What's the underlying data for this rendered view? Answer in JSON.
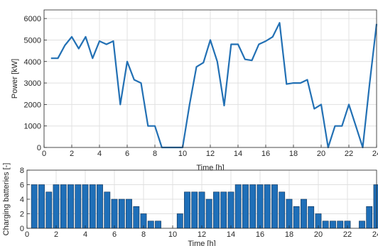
{
  "colors": {
    "series": "#2270b4",
    "bar_fill": "#1f6fb8",
    "bar_edge": "#0c2f52",
    "grid": "#e0e0e0",
    "axis": "#262626"
  },
  "chart_data": [
    {
      "type": "line",
      "xlabel": "Time [h]",
      "ylabel": "Power [kW]",
      "xlim": [
        0,
        24
      ],
      "ylim": [
        0,
        6400
      ],
      "xticks": [
        "0",
        "2",
        "4",
        "6",
        "8",
        "10",
        "12",
        "14",
        "16",
        "18",
        "20",
        "22",
        "24"
      ],
      "yticks": [
        "0",
        "1000",
        "2000",
        "3000",
        "4000",
        "5000",
        "6000"
      ],
      "grid": true,
      "x": [
        0.5,
        1.0,
        1.5,
        2.0,
        2.5,
        3.0,
        3.5,
        4.0,
        4.5,
        5.0,
        5.5,
        6.0,
        6.5,
        7.0,
        7.5,
        8.0,
        8.5,
        9.0,
        9.5,
        10.0,
        10.5,
        11.0,
        11.5,
        12.0,
        12.5,
        13.0,
        13.5,
        14.0,
        14.5,
        15.0,
        15.5,
        16.0,
        16.5,
        17.0,
        17.5,
        18.0,
        18.5,
        19.0,
        19.5,
        20.0,
        20.5,
        21.0,
        21.5,
        22.0,
        22.5,
        23.0,
        23.5,
        24.0
      ],
      "values": [
        4150,
        4150,
        4750,
        5150,
        4600,
        5150,
        4150,
        4950,
        4800,
        4950,
        2000,
        4000,
        3150,
        3000,
        1000,
        1000,
        0,
        0,
        0,
        0,
        2000,
        3750,
        3950,
        5000,
        4000,
        1950,
        4800,
        4800,
        4100,
        4050,
        4800,
        4950,
        5150,
        5800,
        2950,
        3000,
        3000,
        3150,
        1800,
        2000,
        0,
        1000,
        1000,
        2000,
        1000,
        0,
        3000,
        5750
      ]
    },
    {
      "type": "bar",
      "xlabel": "Time [h]",
      "ylabel": "Charging batteries [-]",
      "xlim": [
        0,
        24
      ],
      "ylim": [
        0,
        8
      ],
      "xticks": [
        "0",
        "2",
        "4",
        "6",
        "8",
        "10",
        "12",
        "14",
        "16",
        "18",
        "20",
        "22",
        "24"
      ],
      "yticks": [
        "0",
        "2",
        "4",
        "6",
        "8"
      ],
      "grid": true,
      "x": [
        0.5,
        1.0,
        1.5,
        2.0,
        2.5,
        3.0,
        3.5,
        4.0,
        4.5,
        5.0,
        5.5,
        6.0,
        6.5,
        7.0,
        7.5,
        8.0,
        8.5,
        9.0,
        9.5,
        10.0,
        10.5,
        11.0,
        11.5,
        12.0,
        12.5,
        13.0,
        13.5,
        14.0,
        14.5,
        15.0,
        15.5,
        16.0,
        16.5,
        17.0,
        17.5,
        18.0,
        18.5,
        19.0,
        19.5,
        20.0,
        20.5,
        21.0,
        21.5,
        22.0,
        22.5,
        23.0,
        23.5,
        24.0
      ],
      "values": [
        6,
        6,
        5,
        6,
        6,
        6,
        6,
        6,
        6,
        6,
        5,
        4,
        4,
        4,
        3,
        2,
        1,
        1,
        0,
        0,
        2,
        5,
        5,
        5,
        4,
        5,
        5,
        5,
        6,
        6,
        6,
        6,
        6,
        6,
        5,
        4,
        3,
        4,
        3,
        2,
        1,
        1,
        1,
        1,
        0,
        1,
        3,
        6
      ]
    }
  ]
}
